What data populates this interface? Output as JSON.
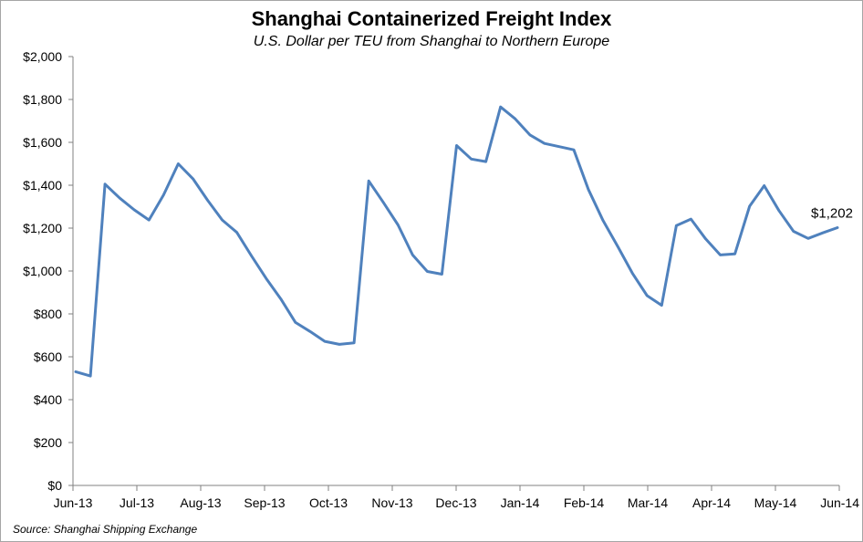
{
  "chart_data": {
    "type": "line",
    "title": "Shanghai Containerized Freight Index",
    "subtitle": "U.S. Dollar per TEU from Shanghai to Northern Europe",
    "source": "Source: Shanghai Shipping Exchange",
    "xlabel": "",
    "ylabel": "",
    "ylim": [
      0,
      2000
    ],
    "y_ticks": [
      0,
      200,
      400,
      600,
      800,
      1000,
      1200,
      1400,
      1600,
      1800,
      2000
    ],
    "y_tick_labels": [
      "$0",
      "$200",
      "$400",
      "$600",
      "$800",
      "$1,000",
      "$1,200",
      "$1,400",
      "$1,600",
      "$1,800",
      "$2,000"
    ],
    "x_tick_labels": [
      "Jun-13",
      "Jul-13",
      "Aug-13",
      "Sep-13",
      "Oct-13",
      "Nov-13",
      "Dec-13",
      "Jan-14",
      "Feb-14",
      "Mar-14",
      "Apr-14",
      "May-14",
      "Jun-14"
    ],
    "grid": false,
    "line_color": "#4f81bd",
    "end_label": "$1,202",
    "series": [
      {
        "values": [
          530,
          510,
          1405,
          1340,
          1285,
          1238,
          1355,
          1500,
          1430,
          1330,
          1238,
          1180,
          1070,
          965,
          870,
          760,
          718,
          672,
          658,
          665,
          1420,
          1320,
          1215,
          1075,
          998,
          985,
          1585,
          1522,
          1510,
          1765,
          1710,
          1635,
          1595,
          1580,
          1565,
          1380,
          1235,
          1115,
          990,
          885,
          840,
          1212,
          1242,
          1150,
          1075,
          1080,
          1302,
          1398,
          1282,
          1185,
          1152,
          1178,
          1202
        ]
      }
    ]
  }
}
